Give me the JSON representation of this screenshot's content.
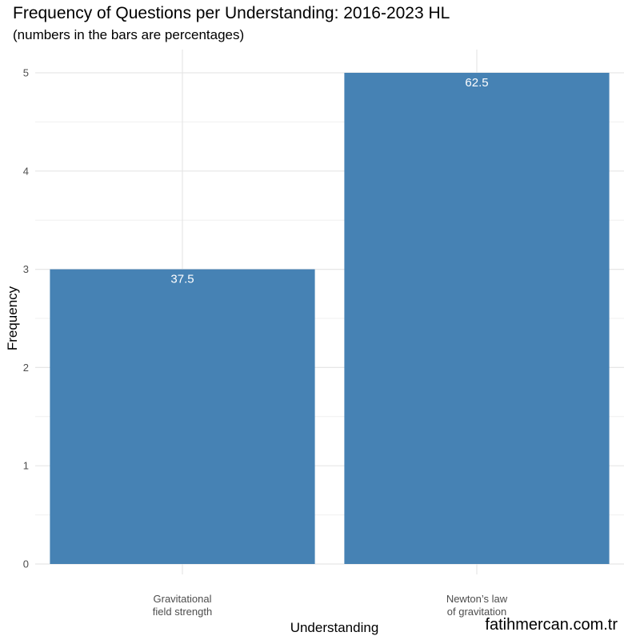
{
  "chart_data": {
    "type": "bar",
    "title": "Frequency of Questions per Understanding: 2016-2023 HL",
    "subtitle": "(numbers in the bars are percentages)",
    "xlabel": "Understanding",
    "ylabel": "Frequency",
    "categories": [
      [
        "Gravitational",
        "field strength"
      ],
      [
        "Newton’s law",
        "of gravitation"
      ]
    ],
    "values": [
      3,
      5
    ],
    "bar_labels": [
      "37.5",
      "62.5"
    ],
    "yticks": [
      0,
      1,
      2,
      3,
      4,
      5
    ],
    "ylim": [
      0,
      5.25
    ],
    "grid": true,
    "bar_color": "#4682B4",
    "bar_label_color": "#ffffff"
  },
  "watermark": "fatihmercan.com.tr"
}
